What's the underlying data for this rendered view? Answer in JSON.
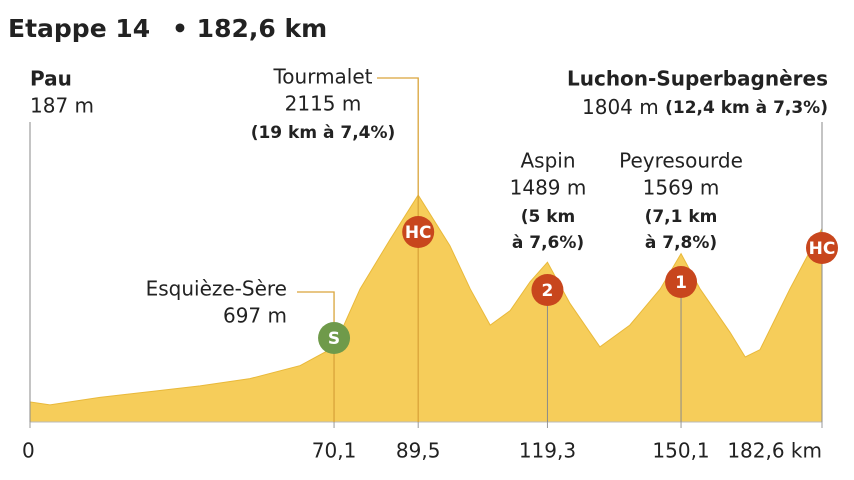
{
  "chart_data": {
    "type": "area",
    "title": "Etappe 14",
    "subtitle": "• 182,6 km",
    "color": "#f6cd5a",
    "x": [
      0,
      4.6,
      16.1,
      27.7,
      39.2,
      50.7,
      62.3,
      70.1,
      76.1,
      83.0,
      89.5,
      96.8,
      101.5,
      106.1,
      110.7,
      115.3,
      119.3,
      124.5,
      131.4,
      138.3,
      145.3,
      150.1,
      154.5,
      161.4,
      164.9,
      168.3,
      175.2,
      182.6
    ],
    "values": [
      187,
      160,
      230,
      283,
      337,
      404,
      526,
      697,
      1240,
      1700,
      2115,
      1644,
      1240,
      903,
      1038,
      1307,
      1489,
      1105,
      700,
      903,
      1240,
      1569,
      1240,
      836,
      606,
      674,
      1240,
      1804
    ],
    "xlim": [
      0,
      182.6
    ],
    "ylim": [
      0,
      2400
    ],
    "xticks": [
      0,
      {
        "value": 70.1,
        "label": "70,1"
      },
      {
        "value": 89.5,
        "label": "89,5"
      },
      {
        "value": 119.3,
        "label": "119,3"
      },
      {
        "value": 150.1,
        "label": "150,1"
      },
      {
        "value": 182.6,
        "label": "182,6 km"
      }
    ],
    "places": [
      {
        "name": "Pau",
        "km": 0,
        "elevation": "187 m"
      },
      {
        "name": "Esquièze-Sère",
        "km": 70.1,
        "elevation": "697 m",
        "badge": "S",
        "badge_color": "#6f9a4a"
      },
      {
        "name": "Tourmalet",
        "km": 89.5,
        "elevation": "2115 m",
        "detail": [
          "(19 km à 7,4%)"
        ],
        "badge": "HC",
        "badge_color": "#c8461d"
      },
      {
        "name": "Aspin",
        "km": 119.3,
        "elevation": "1489 m",
        "detail": [
          "(5 km",
          "à 7,6%)"
        ],
        "badge": "2",
        "badge_color": "#c8461d"
      },
      {
        "name": "Peyresourde",
        "km": 150.1,
        "elevation": "1569 m",
        "detail": [
          "(7,1 km",
          "à 7,8%)"
        ],
        "badge": "1",
        "badge_color": "#c8461d"
      },
      {
        "name": "Luchon-Superbagnères",
        "km": 182.6,
        "elevation": "1804 m",
        "detail": [
          "(12,4 km à 7,3%)"
        ],
        "badge": "HC",
        "badge_color": "#c8461d"
      }
    ]
  }
}
